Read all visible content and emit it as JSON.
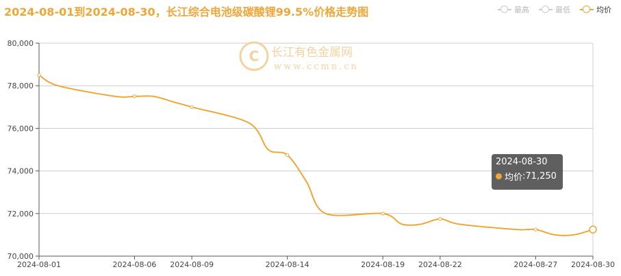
{
  "title": "2024-08-01到2024-08-30，长江综合电池级碳酸锂99.5%价格走势图",
  "legend": [
    {
      "label": "最高",
      "active": false
    },
    {
      "label": "最低",
      "active": false
    },
    {
      "label": "均价",
      "active": true
    }
  ],
  "watermark": {
    "name": "长江有色金属网",
    "url": "www.ccmn.cn"
  },
  "tooltip": {
    "date": "2024-08-30",
    "series": "均价",
    "value_text": "71,250"
  },
  "colors": {
    "series": "#f0a636",
    "grid": "#cccccc",
    "axis": "#555555"
  },
  "chart_data": {
    "type": "line",
    "x": [
      "2024-08-01",
      "2024-08-02",
      "2024-08-05",
      "2024-08-06",
      "2024-08-07",
      "2024-08-08",
      "2024-08-09",
      "2024-08-12",
      "2024-08-13",
      "2024-08-14",
      "2024-08-15",
      "2024-08-16",
      "2024-08-19",
      "2024-08-20",
      "2024-08-21",
      "2024-08-22",
      "2024-08-23",
      "2024-08-26",
      "2024-08-27",
      "2024-08-28",
      "2024-08-29",
      "2024-08-30"
    ],
    "series": [
      {
        "name": "均价",
        "values": [
          78500,
          78000,
          77500,
          77500,
          77500,
          77250,
          77000,
          76250,
          75000,
          74750,
          73500,
          72000,
          72000,
          71500,
          71500,
          71750,
          71500,
          71250,
          71250,
          71000,
          71000,
          71250
        ]
      }
    ],
    "ylim": [
      70000,
      80000
    ],
    "yticks": [
      "70,000",
      "72,000",
      "74,000",
      "76,000",
      "78,000",
      "80,000"
    ],
    "xticks": [
      "2024-08-01",
      "2024-08-06",
      "2024-08-09",
      "2024-08-14",
      "2024-08-19",
      "2024-08-22",
      "2024-08-27",
      "2024-08-30"
    ],
    "grid": true,
    "legend_position": "top-right"
  }
}
